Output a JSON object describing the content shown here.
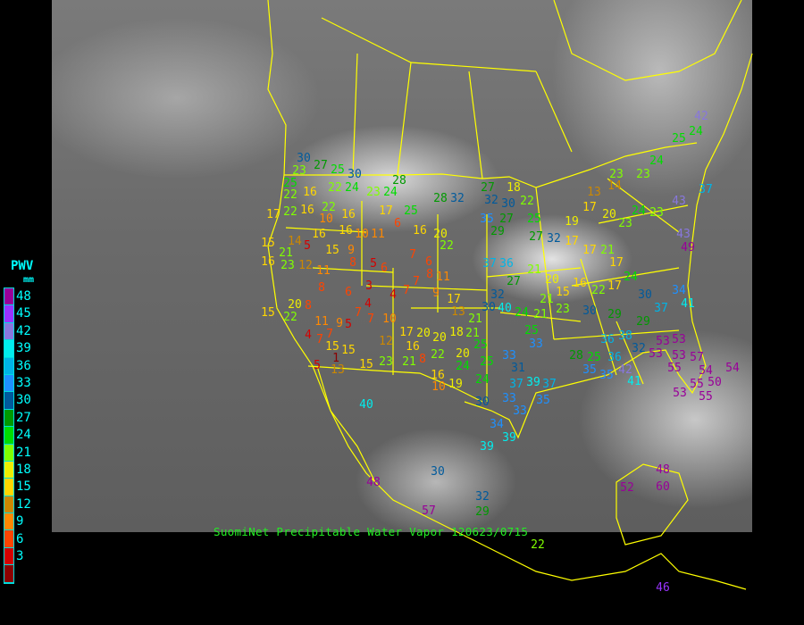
{
  "legend": {
    "title": "PWV",
    "unit": "mm",
    "ticks": [
      "48",
      "45",
      "42",
      "39",
      "36",
      "33",
      "30",
      "27",
      "24",
      "21",
      "18",
      "15",
      "12",
      "9",
      "6",
      "3"
    ],
    "colors": [
      "#990099",
      "#9933ff",
      "#8877dd",
      "#00eeee",
      "#00b4e6",
      "#1e90ff",
      "#005a9c",
      "#009900",
      "#00dd00",
      "#80ff00",
      "#eeee00",
      "#ffd700",
      "#cc8800",
      "#ff8800",
      "#ff4400",
      "#d40000",
      "#8b0000"
    ]
  },
  "caption": "SuomiNet Precipitable Water Vapor 120623/0715",
  "station_values": [
    30,
    23,
    27,
    25,
    30,
    25,
    22,
    16,
    22,
    24,
    23,
    24,
    28,
    22,
    16,
    22,
    10,
    16,
    17,
    16,
    16,
    10,
    11,
    17,
    6,
    25,
    28,
    32,
    16,
    20,
    22,
    14,
    15,
    21,
    5,
    15,
    9,
    16,
    23,
    12,
    11,
    5,
    8,
    6,
    7,
    6,
    11,
    8,
    8,
    6,
    3,
    4,
    4,
    7,
    7,
    9,
    17,
    15,
    22,
    20,
    8,
    11,
    9,
    5,
    7,
    10,
    7,
    4,
    7,
    7,
    15,
    15,
    12,
    17,
    20,
    16,
    20,
    18,
    22,
    21,
    8,
    1,
    13,
    5,
    15,
    23,
    21,
    20,
    13,
    21,
    27,
    18,
    32,
    30,
    22,
    35,
    27,
    29,
    25,
    27,
    32,
    37,
    36,
    21,
    27,
    32,
    40,
    30,
    24,
    21,
    15,
    20,
    17,
    19,
    17,
    20,
    23,
    24,
    23,
    14,
    13,
    21,
    17,
    17,
    17,
    24,
    22,
    16,
    21,
    25,
    23,
    30,
    29,
    30,
    37,
    29,
    34,
    41,
    32,
    36,
    38,
    36,
    25,
    28,
    35,
    35,
    42,
    41,
    53,
    53,
    53,
    57,
    55,
    54,
    54,
    55,
    50,
    53,
    55,
    53,
    49,
    43,
    43,
    42,
    25,
    37,
    24,
    23,
    23,
    24,
    33,
    33,
    31,
    37,
    39,
    33,
    33,
    35,
    37,
    25,
    25,
    24,
    24,
    19,
    10,
    16,
    30,
    34,
    39,
    39,
    30,
    32,
    29,
    57,
    22,
    40,
    48,
    52,
    48,
    60,
    46
  ]
}
